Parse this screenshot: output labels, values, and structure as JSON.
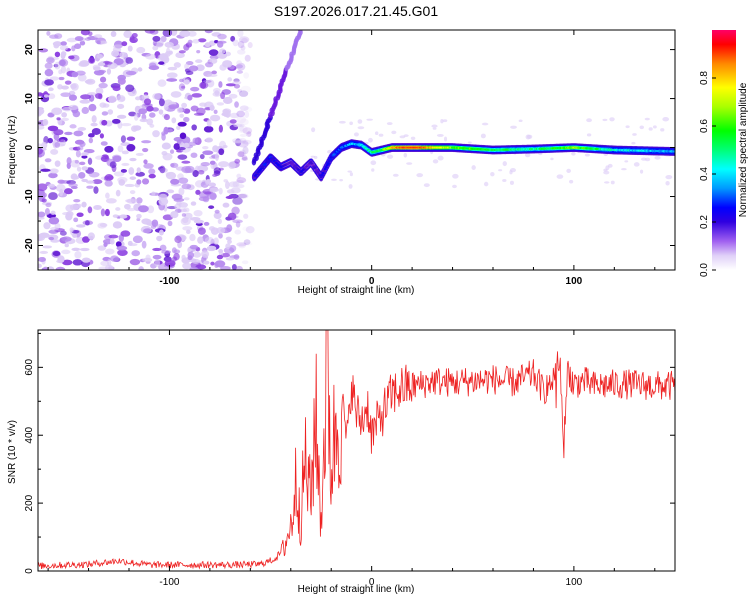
{
  "chart_data": [
    {
      "type": "heatmap",
      "title": "S197.2026.017.21.45.G01",
      "xlabel": "Height of straight line (km)",
      "ylabel": "Frequency (Hz)",
      "xlim": [
        -165,
        150
      ],
      "ylim": [
        -25,
        24
      ],
      "xticks": [
        -100,
        0,
        100
      ],
      "xtick_labels": [
        "-100",
        "0",
        "100"
      ],
      "yticks": [
        -20,
        -10,
        0,
        10,
        20
      ],
      "ytick_labels": [
        "-20",
        "-10",
        "0",
        "10",
        "20"
      ],
      "colorbar": {
        "label": "Normalized spectral amplitude",
        "range": [
          0,
          1
        ],
        "ticks": [
          0.0,
          0.2,
          0.4,
          0.6,
          0.8
        ],
        "tick_labels": [
          "0.0",
          "0.2",
          "0.4",
          "0.6",
          "0.8"
        ],
        "colormap": [
          "#ffffff",
          "#d9c4f5",
          "#b07ae8",
          "#7a1fd6",
          "#3a0ad0",
          "#0000ff",
          "#0088ff",
          "#00ffff",
          "#00ff66",
          "#00ff00",
          "#aaff00",
          "#ffff00",
          "#ff9900",
          "#ff2200",
          "#ff0066"
        ]
      },
      "signal_track": {
        "description_x_km": [
          -58,
          -50,
          -45,
          -40,
          -35,
          -30,
          -25,
          -20,
          -15,
          -10,
          -5,
          0,
          5,
          10,
          20,
          40,
          60,
          80,
          100,
          120,
          150
        ],
        "frequency_hz": [
          -6,
          -2,
          -4,
          -3,
          -5,
          -3,
          -6,
          -2,
          0,
          0.8,
          0.5,
          -1,
          -0.5,
          0,
          0,
          0,
          -0.5,
          -0.3,
          0,
          -0.5,
          -0.8
        ],
        "peak_amplitude": [
          0.3,
          0.35,
          0.3,
          0.25,
          0.3,
          0.25,
          0.3,
          0.35,
          0.4,
          0.45,
          0.5,
          0.55,
          0.6,
          0.85,
          0.95,
          0.7,
          0.6,
          0.55,
          0.7,
          0.5,
          0.45
        ]
      },
      "noise_region_x_km": [
        -165,
        -60
      ],
      "ray_x_km": [
        -58,
        -35
      ],
      "ray_y_hz": [
        -3,
        24
      ]
    },
    {
      "type": "line",
      "xlabel": "Height of straight line (km)",
      "ylabel": "SNR (10 * v/v)",
      "xlim": [
        -165,
        150
      ],
      "ylim": [
        0,
        710
      ],
      "xticks": [
        -100,
        0,
        100
      ],
      "xtick_labels": [
        "-100",
        "0",
        "100"
      ],
      "yticks": [
        0,
        200,
        400,
        600
      ],
      "ytick_labels": [
        "0",
        "200",
        "400",
        "600"
      ],
      "series": [
        {
          "name": "SNR",
          "color": "#ee2222",
          "x_km": [
            -165,
            -140,
            -125,
            -110,
            -90,
            -70,
            -55,
            -48,
            -44,
            -40,
            -37,
            -35,
            -33,
            -30,
            -28,
            -25,
            -22,
            -20,
            -18,
            -15,
            -12,
            -10,
            -8,
            -5,
            -2,
            0,
            5,
            10,
            15,
            20,
            25,
            30,
            40,
            50,
            60,
            70,
            80,
            85,
            90,
            93,
            95,
            97,
            100,
            105,
            110,
            120,
            130,
            140,
            150
          ],
          "values": [
            15,
            20,
            30,
            18,
            18,
            18,
            20,
            35,
            60,
            130,
            280,
            150,
            330,
            200,
            480,
            150,
            630,
            300,
            420,
            500,
            380,
            560,
            470,
            440,
            490,
            400,
            460,
            520,
            540,
            545,
            550,
            560,
            555,
            560,
            565,
            555,
            580,
            530,
            570,
            630,
            370,
            600,
            550,
            560,
            545,
            550,
            550,
            545,
            545
          ]
        }
      ]
    }
  ]
}
